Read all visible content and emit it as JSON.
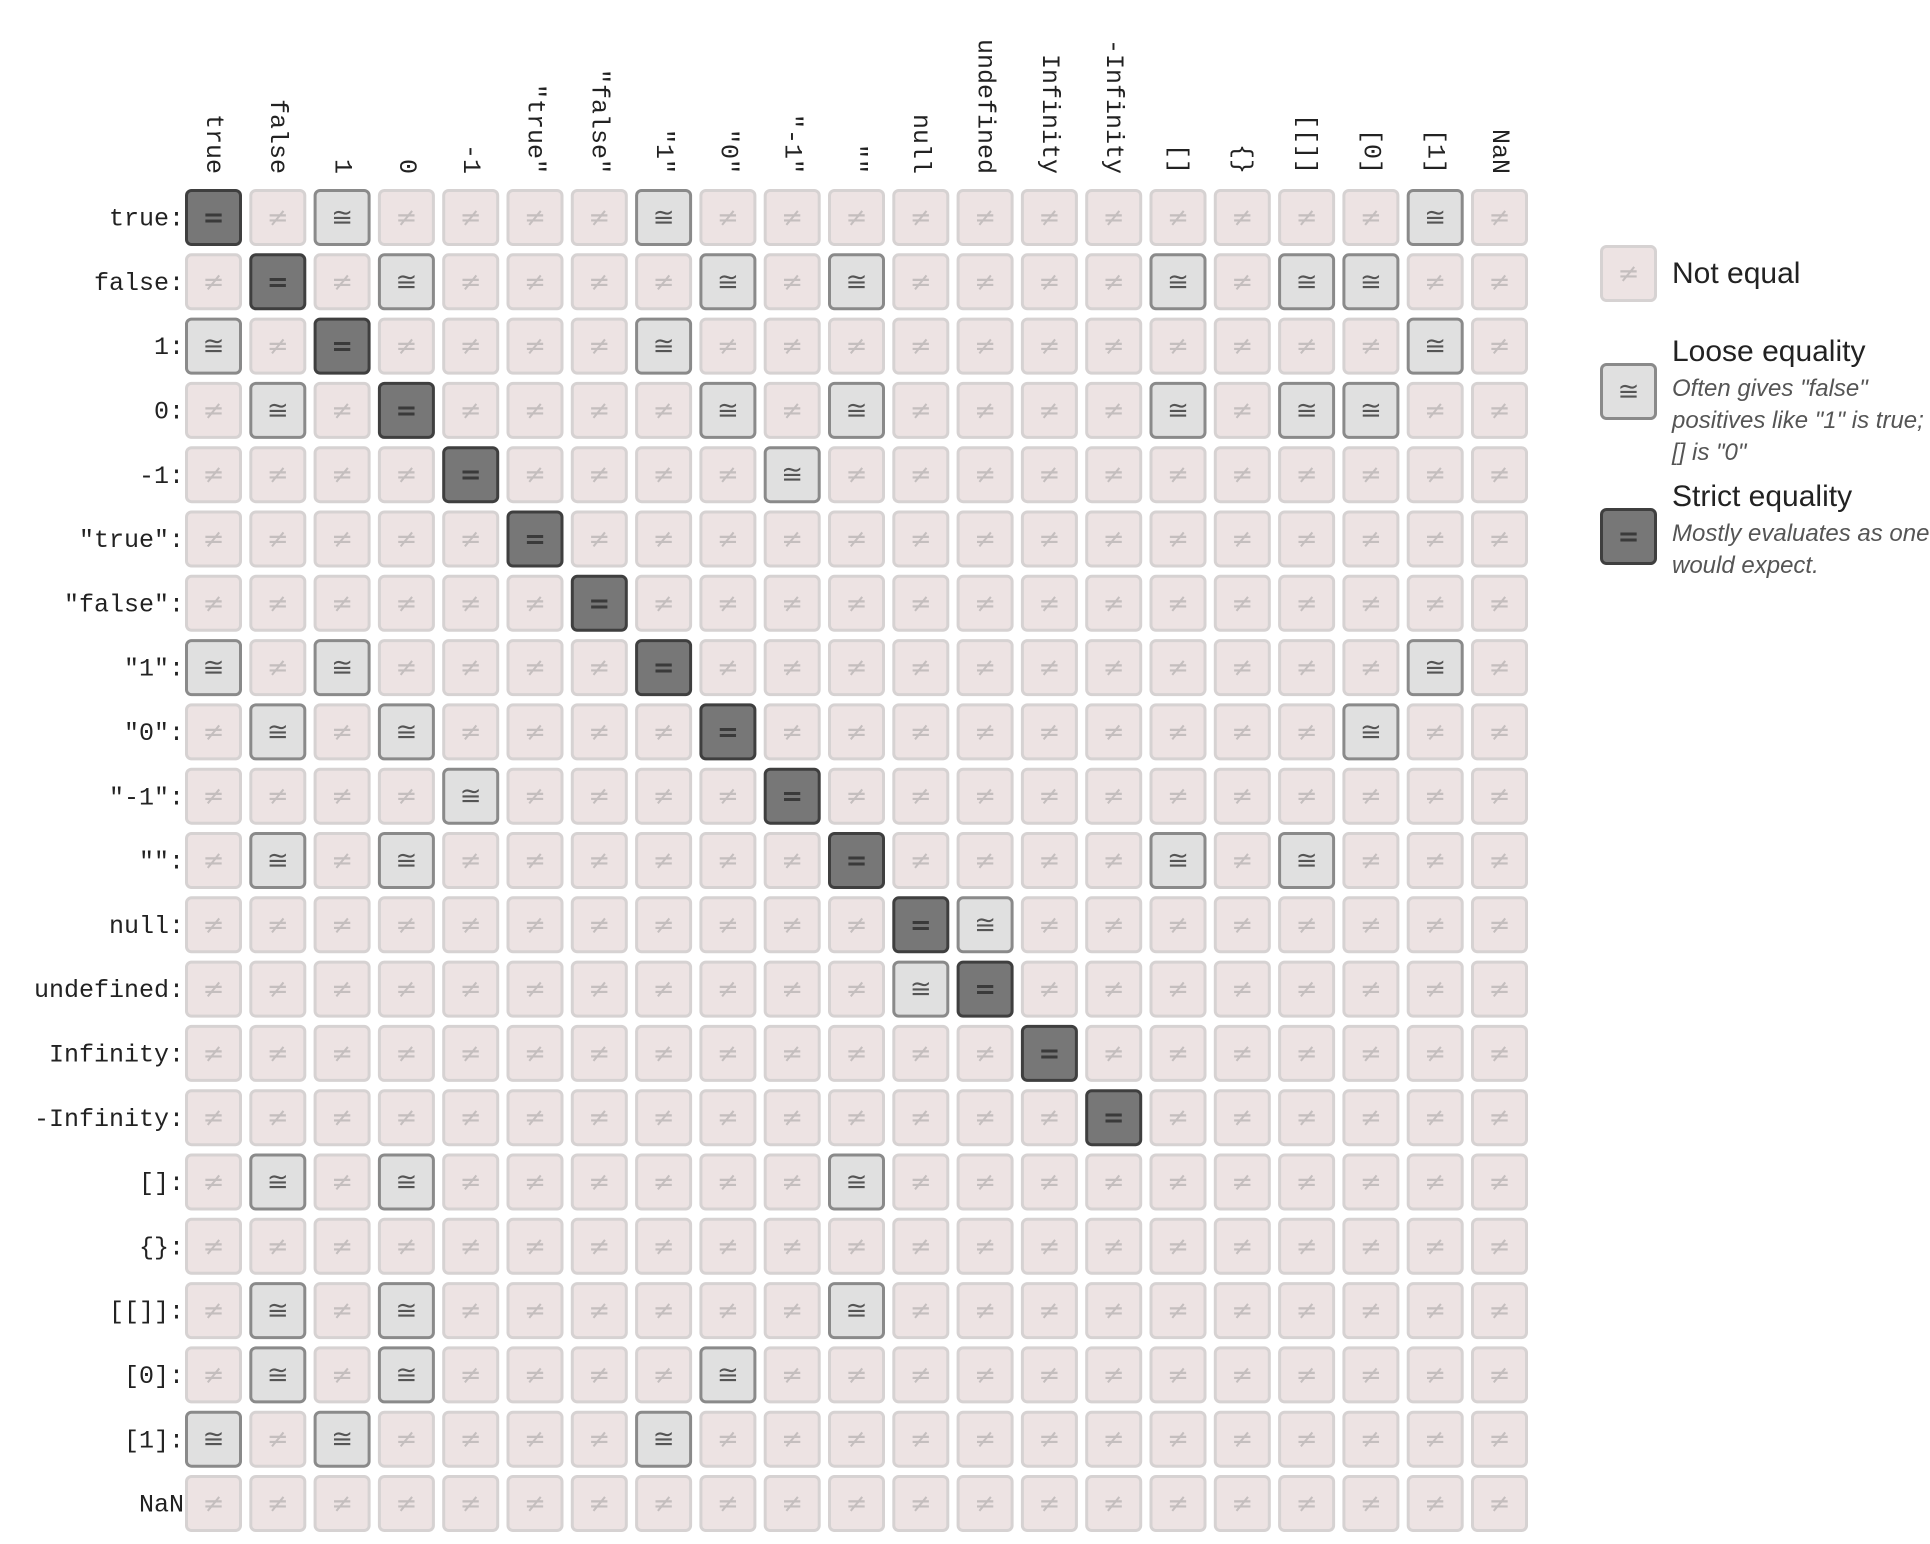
{
  "columns": [
    "true",
    "false",
    "1",
    "0",
    "-1",
    "\"true\"",
    "\"false\"",
    "\"1\"",
    "\"0\"",
    "\"-1\"",
    "\"\"",
    "null",
    "undefined",
    "Infinity",
    "-Infinity",
    "[]",
    "{}",
    "[[]]",
    "[0]",
    "[1]",
    "NaN"
  ],
  "rows": [
    "true:",
    "false:",
    "1:",
    "0:",
    "-1:",
    "\"true\":",
    "\"false\":",
    "\"1\":",
    "\"0\":",
    "\"-1\":",
    "\"\":",
    "null:",
    "undefined:",
    "Infinity:",
    "-Infinity:",
    "[]:",
    "{}:",
    "[[]]:",
    "[0]:",
    "[1]:",
    "NaN"
  ],
  "matrix": [
    "=≠≅≠≠≠≠≅≠≠≠≠≠≠≠≠≠≠≠≅≠",
    "≠=≠≅≠≠≠≠≅≠≅≠≠≠≠≅≠≅≅≠≠",
    "≅≠=≠≠≠≠≅≠≠≠≠≠≠≠≠≠≠≠≅≠",
    "≠≅≠=≠≠≠≠≅≠≅≠≠≠≠≅≠≅≅≠≠",
    "≠≠≠≠=≠≠≠≠≅≠≠≠≠≠≠≠≠≠≠≠",
    "≠≠≠≠≠=≠≠≠≠≠≠≠≠≠≠≠≠≠≠≠",
    "≠≠≠≠≠≠=≠≠≠≠≠≠≠≠≠≠≠≠≠≠",
    "≅≠≅≠≠≠≠=≠≠≠≠≠≠≠≠≠≠≠≅≠",
    "≠≅≠≅≠≠≠≠=≠≠≠≠≠≠≠≠≠≅≠≠",
    "≠≠≠≠≅≠≠≠≠=≠≠≠≠≠≠≠≠≠≠≠",
    "≠≅≠≅≠≠≠≠≠≠=≠≠≠≠≅≠≅≠≠≠",
    "≠≠≠≠≠≠≠≠≠≠≠=≅≠≠≠≠≠≠≠≠",
    "≠≠≠≠≠≠≠≠≠≠≠≅=≠≠≠≠≠≠≠≠",
    "≠≠≠≠≠≠≠≠≠≠≠≠≠=≠≠≠≠≠≠≠",
    "≠≠≠≠≠≠≠≠≠≠≠≠≠≠=≠≠≠≠≠≠",
    "≠≅≠≅≠≠≠≠≠≠≅≠≠≠≠≠≠≠≠≠≠",
    "≠≠≠≠≠≠≠≠≠≠≠≠≠≠≠≠≠≠≠≠≠",
    "≠≅≠≅≠≠≠≠≠≠≅≠≠≠≠≠≠≠≠≠≠",
    "≠≅≠≅≠≠≠≠≅≠≠≠≠≠≠≠≠≠≠≠≠",
    "≅≠≅≠≠≠≠≅≠≠≠≠≠≠≠≠≠≠≠≠≠",
    "≠≠≠≠≠≠≠≠≠≠≠≠≠≠≠≠≠≠≠≠≠"
  ],
  "legend": [
    {
      "symbol": "≠",
      "title": "Not equal"
    },
    {
      "symbol": "≅",
      "title": "Loose equality",
      "description": "Often gives \"false\" positives like \"1\" is true; [] is \"0\""
    },
    {
      "symbol": "=",
      "title": "Strict equality",
      "description": "Mostly evaluates as one would expect."
    }
  ]
}
